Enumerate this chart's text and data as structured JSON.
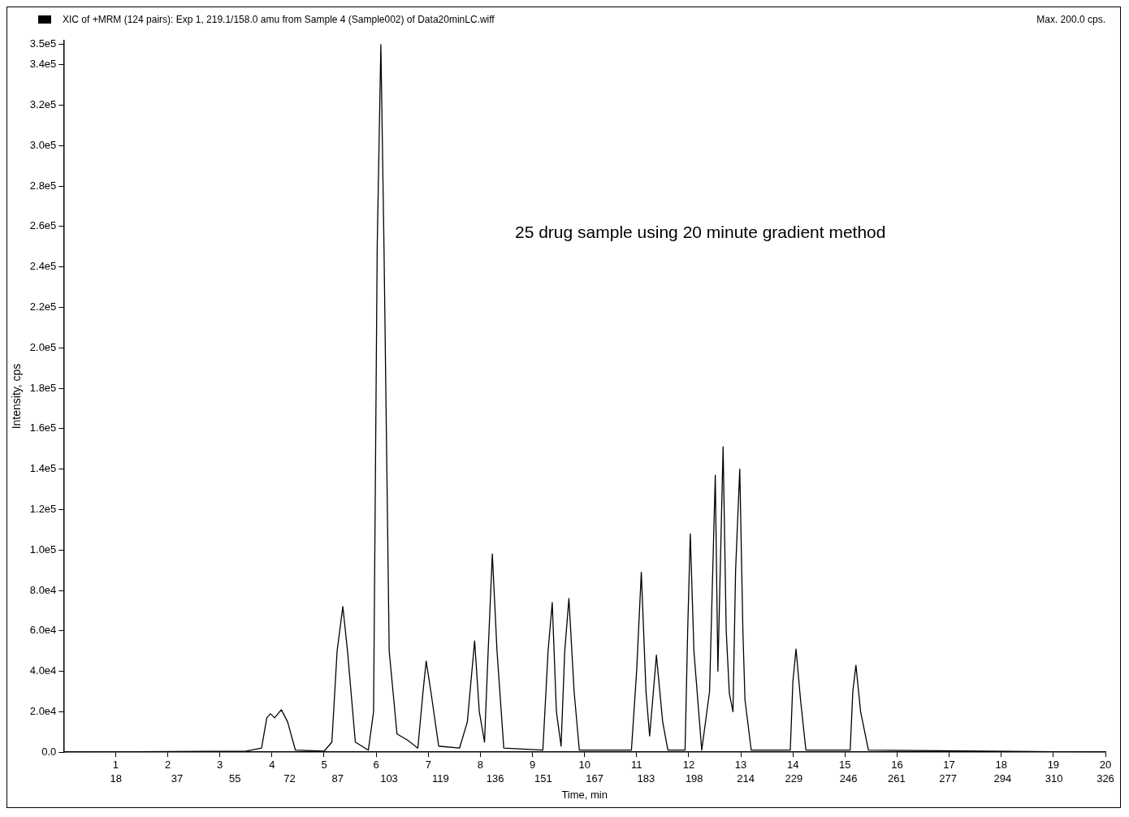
{
  "chart_data": {
    "type": "line",
    "title": "XIC of +MRM (124 pairs): Exp 1, 219.1/158.0 amu from Sample 4 (Sample002) of Data20minLC.wiff",
    "xlabel": "Time, min",
    "ylabel": "Intensity, cps",
    "annotations": [
      "25 drug sample using 20 minute gradient method",
      "Max. 200.0 cps."
    ],
    "xlim": [
      0,
      20
    ],
    "xticks": [
      1,
      2,
      3,
      4,
      5,
      6,
      7,
      8,
      9,
      10,
      11,
      12,
      13,
      14,
      15,
      16,
      17,
      18,
      19,
      20
    ],
    "x2lim": [
      1.7,
      326
    ],
    "x2ticks": [
      18,
      37,
      55,
      72,
      87,
      103,
      119,
      136,
      151,
      167,
      183,
      198,
      214,
      229,
      246,
      261,
      277,
      294,
      310,
      326
    ],
    "ylim": [
      0,
      352000
    ],
    "yticks": [
      {
        "value": 0,
        "label": "0.0"
      },
      {
        "value": 20000,
        "label": "2.0e4"
      },
      {
        "value": 40000,
        "label": "4.0e4"
      },
      {
        "value": 60000,
        "label": "6.0e4"
      },
      {
        "value": 80000,
        "label": "8.0e4"
      },
      {
        "value": 100000,
        "label": "1.0e5"
      },
      {
        "value": 120000,
        "label": "1.2e5"
      },
      {
        "value": 140000,
        "label": "1.4e5"
      },
      {
        "value": 160000,
        "label": "1.6e5"
      },
      {
        "value": 180000,
        "label": "1.8e5"
      },
      {
        "value": 200000,
        "label": "2.0e5"
      },
      {
        "value": 220000,
        "label": "2.2e5"
      },
      {
        "value": 240000,
        "label": "2.4e5"
      },
      {
        "value": 260000,
        "label": "2.6e5"
      },
      {
        "value": 280000,
        "label": "2.8e5"
      },
      {
        "value": 300000,
        "label": "3.0e5"
      },
      {
        "value": 320000,
        "label": "3.2e5"
      },
      {
        "value": 340000,
        "label": "3.4e5"
      },
      {
        "value": 350000,
        "label": "3.5e5"
      }
    ],
    "grid": false,
    "legend": false,
    "marker": "none",
    "line_style": "solid",
    "series": [
      {
        "color": "#000000",
        "x": [
          0,
          3.5,
          3.8,
          3.9,
          3.97,
          4.05,
          4.18,
          4.3,
          4.45,
          5.0,
          5.15,
          5.25,
          5.36,
          5.45,
          5.6,
          5.85,
          5.95,
          6.02,
          6.09,
          6.15,
          6.25,
          6.4,
          6.6,
          6.8,
          6.9,
          6.96,
          7.05,
          7.2,
          7.6,
          7.75,
          7.89,
          7.98,
          8.08,
          8.15,
          8.23,
          8.32,
          8.45,
          9.2,
          9.3,
          9.38,
          9.46,
          9.55,
          9.62,
          9.7,
          9.8,
          9.9,
          10.9,
          11.0,
          11.09,
          11.18,
          11.25,
          11.38,
          11.5,
          11.6,
          11.93,
          11.98,
          12.03,
          12.1,
          12.25,
          12.4,
          12.51,
          12.56,
          12.66,
          12.72,
          12.78,
          12.85,
          12.9,
          12.98,
          13.04,
          13.08,
          13.2,
          13.95,
          14.0,
          14.06,
          14.15,
          14.25,
          15.1,
          15.15,
          15.21,
          15.3,
          15.45,
          20
        ],
        "values": [
          0,
          500,
          2000,
          17000,
          19000,
          17000,
          21000,
          15000,
          1000,
          500,
          5000,
          50000,
          72000,
          50000,
          5000,
          1000,
          20000,
          250000,
          350000,
          250000,
          50000,
          9000,
          6000,
          2000,
          30000,
          45000,
          30000,
          3000,
          2000,
          15000,
          55000,
          20000,
          5000,
          50000,
          98000,
          50000,
          2000,
          1000,
          50000,
          74000,
          20000,
          3000,
          50000,
          76000,
          30000,
          1000,
          1000,
          40000,
          89000,
          30000,
          8000,
          48000,
          15000,
          1000,
          1000,
          60000,
          108000,
          50000,
          1000,
          30000,
          137000,
          40000,
          151000,
          60000,
          29000,
          20000,
          90000,
          140000,
          60000,
          26000,
          1000,
          1000,
          35000,
          51000,
          25000,
          1000,
          1000,
          30000,
          43000,
          20000,
          1000,
          0
        ]
      }
    ]
  }
}
